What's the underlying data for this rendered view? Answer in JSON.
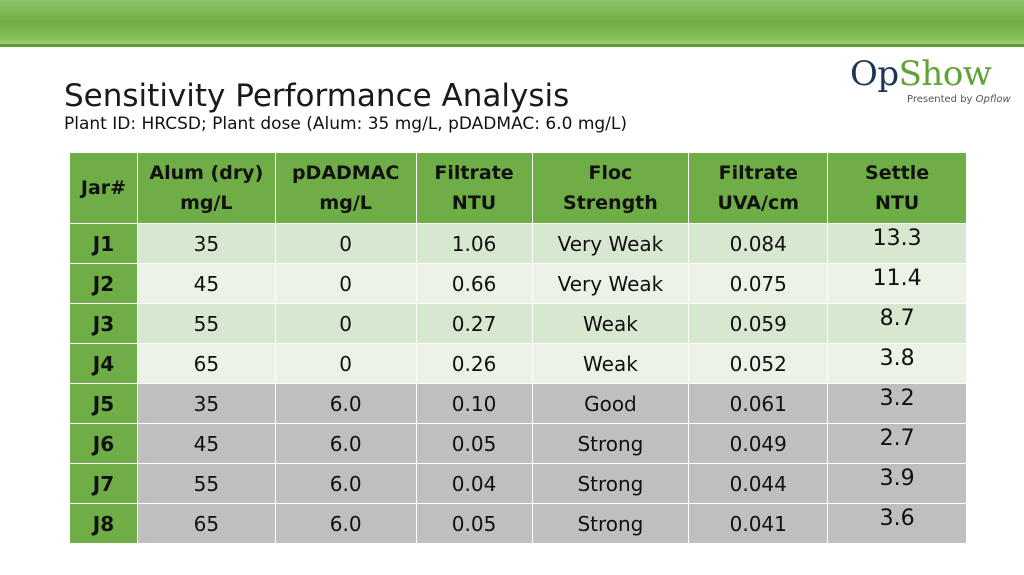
{
  "header": {
    "title": "Sensitivity Performance Analysis",
    "subtitle": "Plant ID: HRCSD; Plant dose (Alum: 35 mg/L, pDADMAC: 6.0 mg/L)"
  },
  "logo": {
    "op": "Op",
    "show": "Show",
    "presented_by": "Presented by",
    "brand": "Opflow",
    "colors": {
      "op": "#1f3553",
      "show": "#5fa336"
    }
  },
  "colors": {
    "header_green": "#6fad46",
    "light_green_row": "#d8e7cf",
    "lighter_green_row": "#ebf2e6",
    "gray_row": "#bfbfbf"
  },
  "table": {
    "columns": [
      [
        "Jar#"
      ],
      [
        "Alum (dry)",
        "mg/L"
      ],
      [
        "pDADMAC",
        "mg/L"
      ],
      [
        "Filtrate",
        "NTU"
      ],
      [
        "Floc",
        "Strength"
      ],
      [
        "Filtrate",
        "UVA/cm"
      ],
      [
        "Settle",
        "NTU"
      ]
    ],
    "rows": [
      [
        "J1",
        "35",
        "0",
        "1.06",
        "Very Weak",
        "0.084",
        "13.3"
      ],
      [
        "J2",
        "45",
        "0",
        "0.66",
        "Very Weak",
        "0.075",
        "11.4"
      ],
      [
        "J3",
        "55",
        "0",
        "0.27",
        "Weak",
        "0.059",
        "8.7"
      ],
      [
        "J4",
        "65",
        "0",
        "0.26",
        "Weak",
        "0.052",
        "3.8"
      ],
      [
        "J5",
        "35",
        "6.0",
        "0.10",
        "Good",
        "0.061",
        "3.2"
      ],
      [
        "J6",
        "45",
        "6.0",
        "0.05",
        "Strong",
        "0.049",
        "2.7"
      ],
      [
        "J7",
        "55",
        "6.0",
        "0.04",
        "Strong",
        "0.044",
        "3.9"
      ],
      [
        "J8",
        "65",
        "6.0",
        "0.05",
        "Strong",
        "0.041",
        "3.6"
      ]
    ]
  }
}
